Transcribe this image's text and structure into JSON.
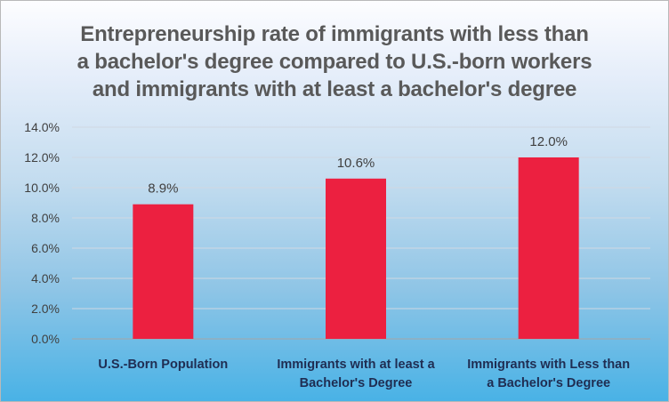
{
  "chart_data": {
    "type": "bar",
    "title_lines": [
      "Entrepreneurship rate of immigrants with less than",
      "a bachelor's degree compared to U.S.-born workers",
      "and immigrants with at least a bachelor's degree"
    ],
    "categories": [
      [
        "U.S.-Born Population"
      ],
      [
        "Immigrants with at least a",
        "Bachelor's Degree"
      ],
      [
        "Immigrants with Less than",
        "a Bachelor's Degree"
      ]
    ],
    "values": [
      8.9,
      10.6,
      12.0
    ],
    "data_labels": [
      "8.9%",
      "10.6%",
      "12.0%"
    ],
    "ylim": [
      0,
      14
    ],
    "y_ticks": [
      0,
      2,
      4,
      6,
      8,
      10,
      12,
      14
    ],
    "y_tick_labels": [
      "0.0%",
      "2.0%",
      "4.0%",
      "6.0%",
      "8.0%",
      "10.0%",
      "12.0%",
      "14.0%"
    ],
    "xlabel": "",
    "ylabel": "",
    "grid": true,
    "legend": false,
    "colors": {
      "bar": "#ec2040",
      "grid": "#d0d8e2",
      "axis": "#a6a6a6"
    }
  }
}
